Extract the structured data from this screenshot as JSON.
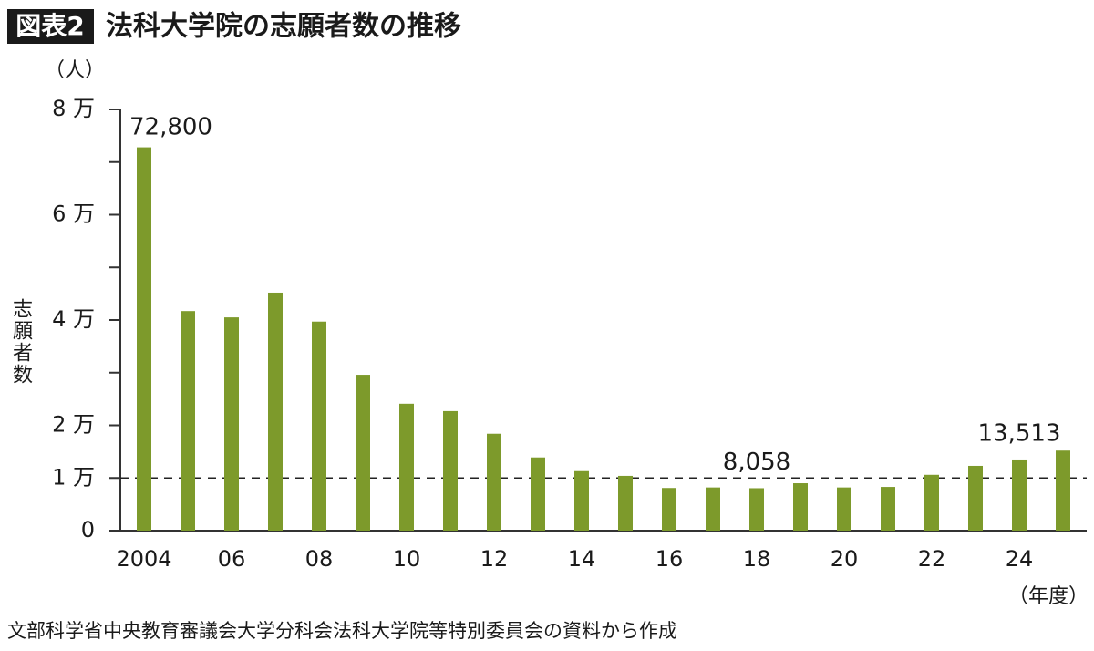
{
  "chart_data": {
    "type": "bar",
    "badge": "図表2",
    "title": "法科大学院の志願者数の推移",
    "y_unit": "（人）",
    "ylabel": "志願者数",
    "x_unit": "（年度）",
    "source": "文部科学省中央教育審議会大学分科会法科大学院等特別委員会の資料から作成",
    "categories": [
      "2004",
      null,
      "06",
      null,
      "08",
      null,
      "10",
      null,
      "12",
      null,
      "14",
      null,
      "16",
      null,
      "18",
      null,
      "20",
      null,
      "22",
      null,
      "24",
      null
    ],
    "values": [
      72800,
      41700,
      40500,
      45200,
      39700,
      29600,
      24100,
      22700,
      18400,
      13900,
      11300,
      10400,
      8100,
      8200,
      8058,
      9000,
      8200,
      8300,
      10600,
      12300,
      13513,
      15200
    ],
    "value_labels": [
      "72,800",
      null,
      null,
      null,
      null,
      null,
      null,
      null,
      null,
      null,
      null,
      null,
      null,
      null,
      "8,058",
      null,
      null,
      null,
      null,
      null,
      "13,513",
      null
    ],
    "color": "#7d9a2b",
    "ylim": [
      0,
      80000
    ],
    "yticks": [
      0,
      {
        "value": 10000,
        "label": "1 万"
      },
      {
        "value": 20000,
        "label": "2 万"
      },
      {
        "value": 40000,
        "label": "4 万"
      },
      {
        "value": 60000,
        "label": "6 万"
      },
      {
        "value": 80000,
        "label": "8 万"
      }
    ],
    "minor_yticks": [
      30000,
      50000,
      70000
    ],
    "reference_line": 10000
  }
}
